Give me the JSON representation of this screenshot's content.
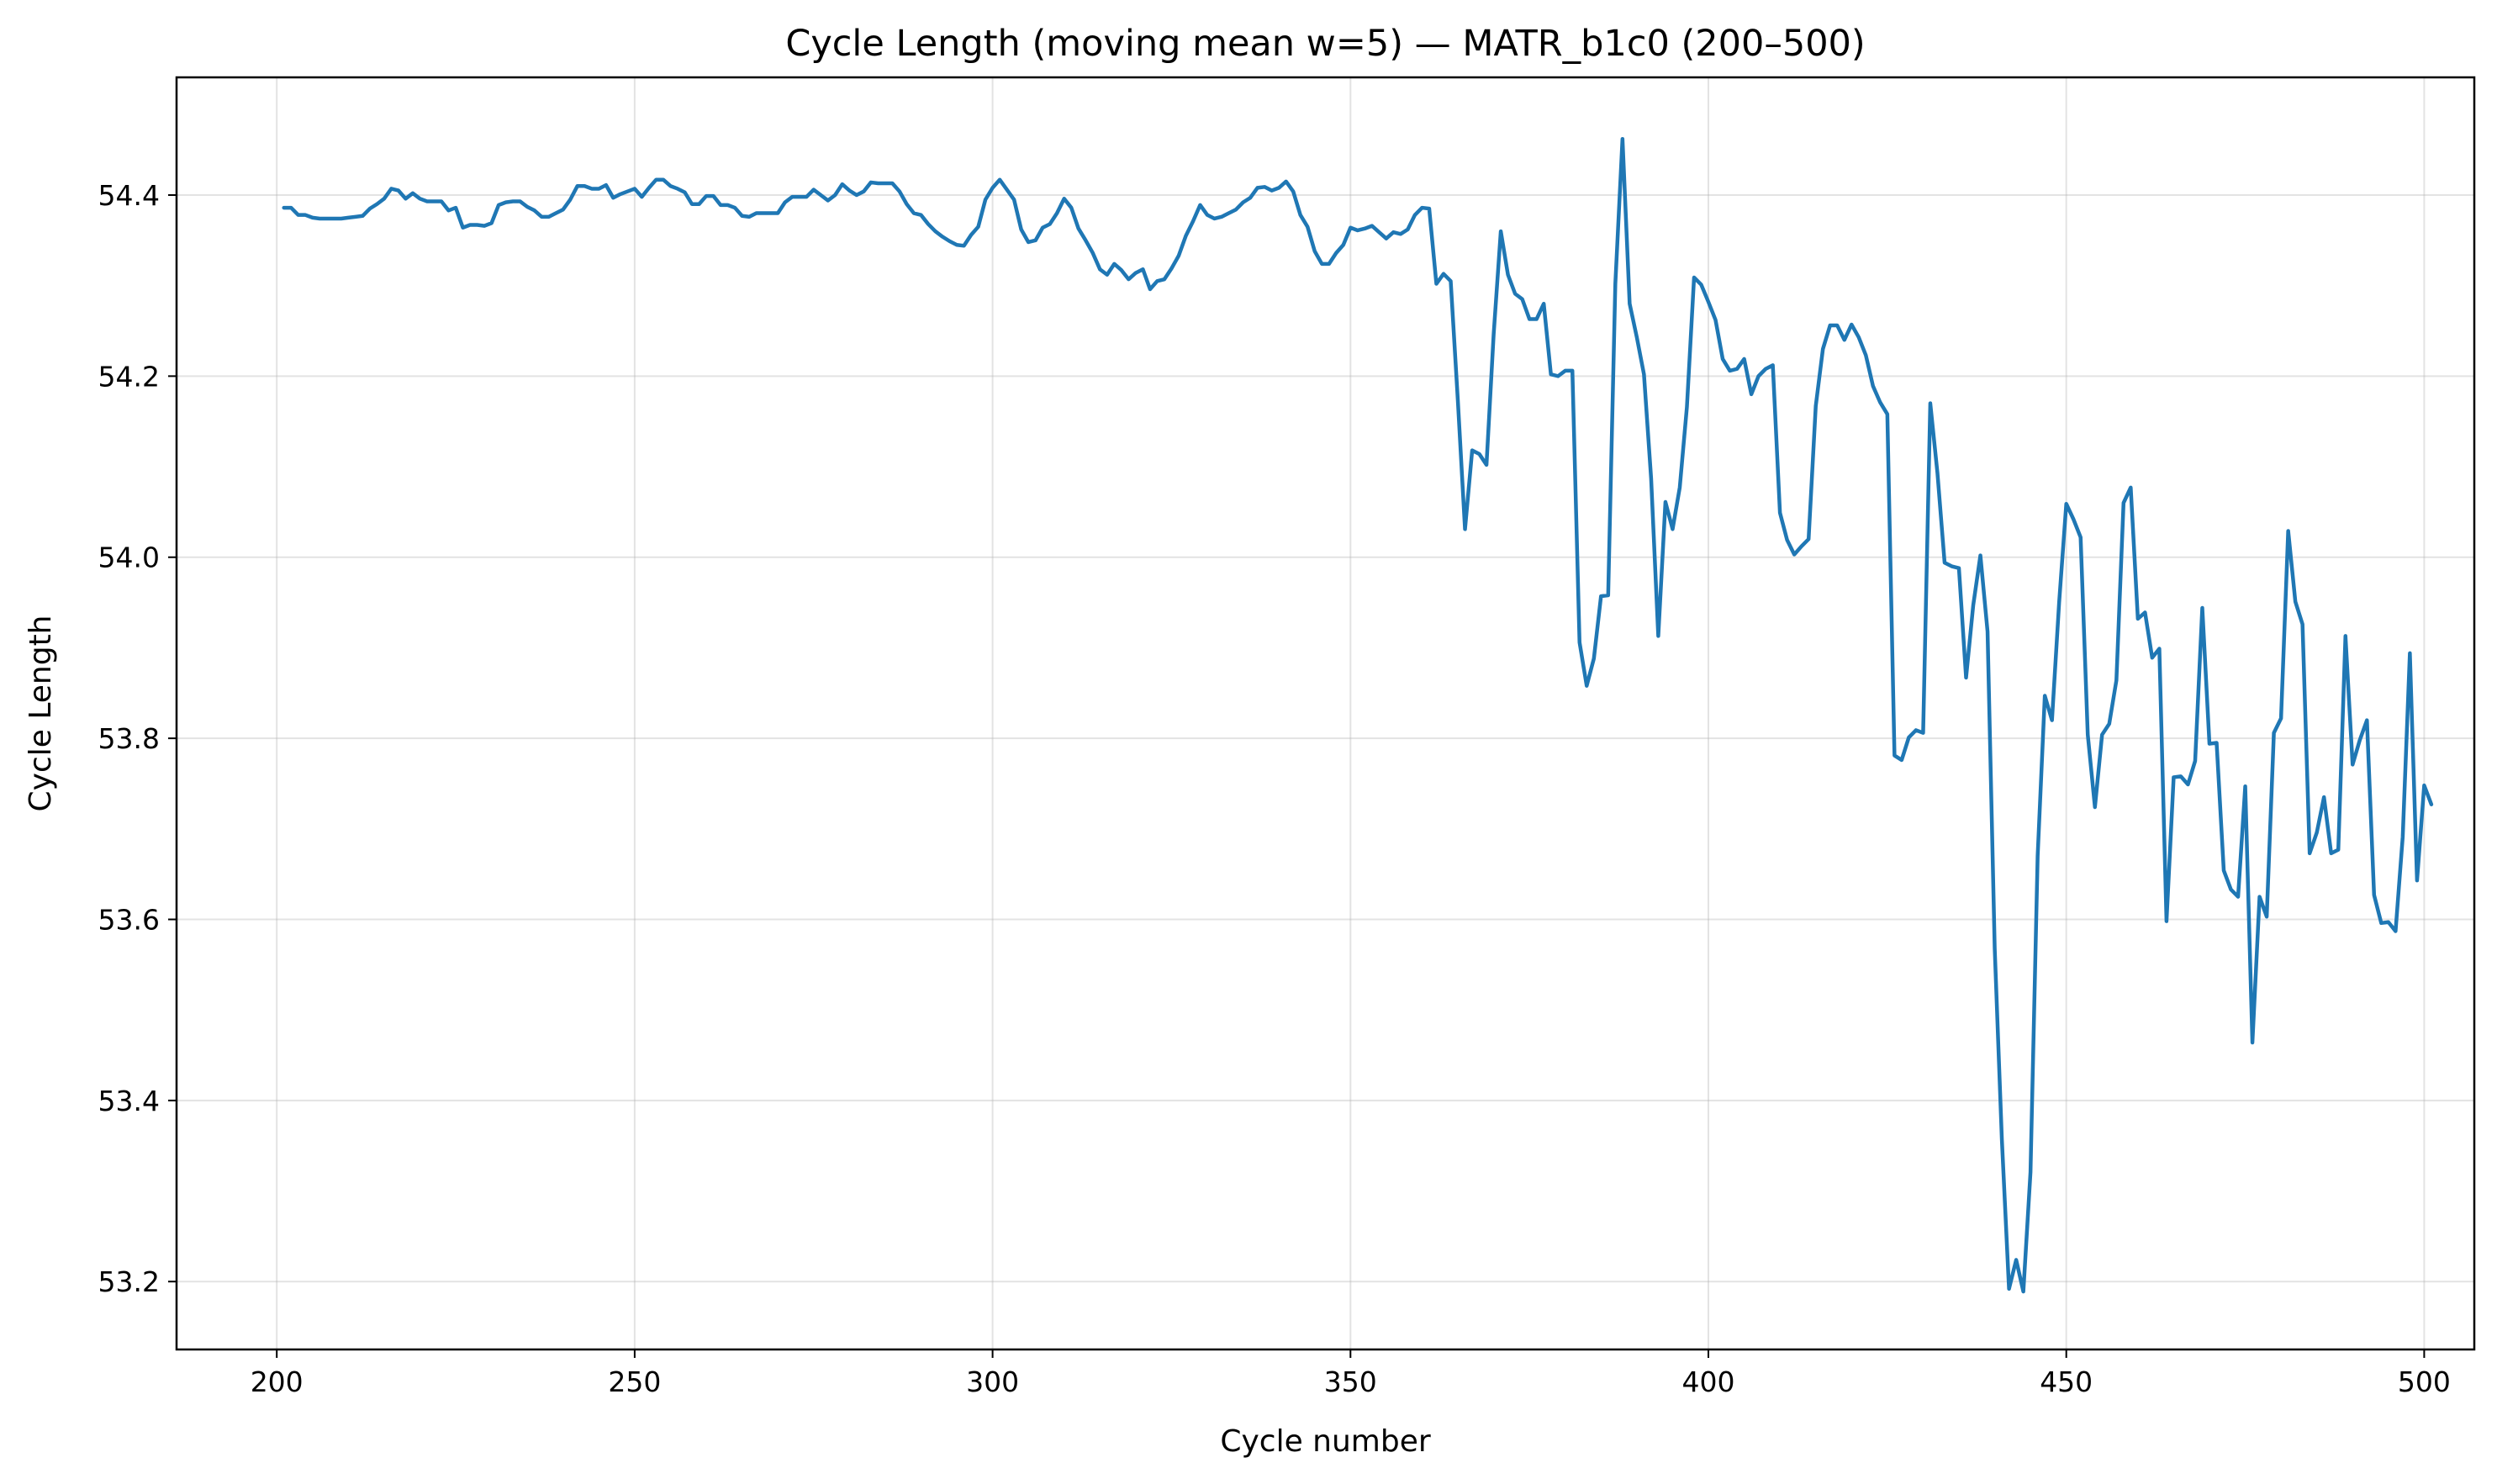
{
  "chart_data": {
    "type": "line",
    "title": "Cycle Length (moving mean w=5) — MATR_b1c0 (200–500)",
    "xlabel": "Cycle number",
    "ylabel": "Cycle Length",
    "xlim": [
      186,
      507
    ],
    "ylim": [
      53.125,
      54.53
    ],
    "xticks": [
      200,
      250,
      300,
      350,
      400,
      450,
      500
    ],
    "xtick_labels": [
      "200",
      "250",
      "300",
      "350",
      "400",
      "450",
      "500"
    ],
    "yticks": [
      53.2,
      53.4,
      53.6,
      53.8,
      54.0,
      54.2,
      54.4
    ],
    "ytick_labels": [
      "53.2",
      "53.4",
      "53.6",
      "53.8",
      "54.0",
      "54.2",
      "54.4"
    ],
    "grid": true,
    "line_color": "#1f77b4",
    "series": [
      {
        "x_start": 201,
        "x_step": 1,
        "values": [
          54.386,
          54.386,
          54.378,
          54.378,
          54.375,
          54.374,
          54.374,
          54.374,
          54.374,
          54.375,
          54.376,
          54.377,
          54.385,
          54.39,
          54.396,
          54.407,
          54.405,
          54.396,
          54.402,
          54.396,
          54.393,
          54.393,
          54.393,
          54.383,
          54.386,
          54.364,
          54.367,
          54.367,
          54.366,
          54.369,
          54.389,
          54.392,
          54.393,
          54.393,
          54.387,
          54.383,
          54.376,
          54.376,
          54.38,
          54.384,
          54.395,
          54.41,
          54.41,
          54.407,
          54.407,
          54.411,
          54.397,
          54.401,
          54.404,
          54.407,
          54.398,
          54.408,
          54.417,
          54.417,
          54.41,
          54.407,
          54.403,
          54.39,
          54.39,
          54.399,
          54.399,
          54.389,
          54.389,
          54.386,
          54.377,
          54.376,
          54.38,
          54.38,
          54.38,
          54.38,
          54.392,
          54.398,
          54.398,
          54.398,
          54.406,
          54.4,
          54.394,
          54.4,
          54.412,
          54.405,
          54.4,
          54.404,
          54.414,
          54.413,
          54.413,
          54.413,
          54.404,
          54.39,
          54.38,
          54.378,
          54.368,
          54.36,
          54.354,
          54.349,
          54.345,
          54.344,
          54.356,
          54.365,
          54.395,
          54.408,
          54.417,
          54.406,
          54.395,
          54.362,
          54.348,
          54.35,
          54.364,
          54.368,
          54.38,
          54.396,
          54.386,
          54.363,
          54.35,
          54.336,
          54.318,
          54.312,
          54.324,
          54.317,
          54.307,
          54.314,
          54.318,
          54.296,
          54.305,
          54.307,
          54.319,
          54.333,
          54.355,
          54.371,
          54.389,
          54.378,
          54.374,
          54.376,
          54.38,
          54.384,
          54.392,
          54.397,
          54.408,
          54.409,
          54.405,
          54.408,
          54.415,
          54.404,
          54.378,
          54.365,
          54.338,
          54.324,
          54.324,
          54.336,
          54.345,
          54.364,
          54.361,
          54.363,
          54.366,
          54.359,
          54.352,
          54.359,
          54.357,
          54.362,
          54.378,
          54.386,
          54.385,
          54.302,
          54.313,
          54.305,
          54.173,
          54.031,
          54.118,
          54.114,
          54.102,
          54.246,
          54.36,
          54.312,
          54.291,
          54.285,
          54.263,
          54.263,
          54.28,
          54.202,
          54.2,
          54.206,
          54.206,
          53.906,
          53.858,
          53.888,
          53.957,
          53.958,
          54.302,
          54.462,
          54.28,
          54.243,
          54.202,
          54.087,
          53.913,
          54.061,
          54.031,
          54.077,
          54.166,
          54.309,
          54.301,
          54.282,
          54.262,
          54.219,
          54.206,
          54.208,
          54.219,
          54.18,
          54.2,
          54.208,
          54.212,
          54.049,
          54.019,
          54.003,
          54.012,
          54.02,
          54.167,
          54.23,
          54.256,
          54.256,
          54.24,
          54.257,
          54.243,
          54.223,
          54.189,
          54.171,
          54.158,
          53.781,
          53.776,
          53.801,
          53.809,
          53.806,
          54.17,
          54.093,
          53.994,
          53.99,
          53.988,
          53.867,
          53.947,
          54.002,
          53.918,
          53.568,
          53.357,
          53.192,
          53.224,
          53.189,
          53.321,
          53.67,
          53.847,
          53.82,
          53.95,
          54.059,
          54.042,
          54.022,
          53.804,
          53.724,
          53.804,
          53.816,
          53.864,
          54.06,
          54.077,
          53.932,
          53.939,
          53.889,
          53.899,
          53.598,
          53.757,
          53.758,
          53.749,
          53.775,
          53.944,
          53.794,
          53.795,
          53.654,
          53.633,
          53.625,
          53.747,
          53.464,
          53.625,
          53.603,
          53.806,
          53.822,
          54.029,
          53.951,
          53.926,
          53.673,
          53.696,
          53.735,
          53.673,
          53.677,
          53.913,
          53.771,
          53.798,
          53.82,
          53.627,
          53.596,
          53.597,
          53.587,
          53.691,
          53.894,
          53.643,
          53.748,
          53.727
        ]
      }
    ]
  }
}
